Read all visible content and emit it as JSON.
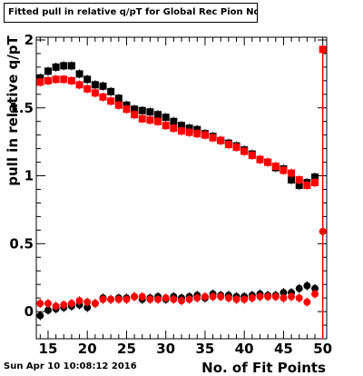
{
  "title": "Fitted pull in relative q/pT  for Global Rec Pion NoHits",
  "timestamp": "Sun Apr 10 10:08:12 2016",
  "chart_data": {
    "type": "scatter",
    "title": "Fitted pull in relative q/pT  for Global Rec Pion NoHits",
    "xlabel": "No. of Fit Points",
    "ylabel": "pull in relative q/pT",
    "xlim": [
      13.5,
      50.5
    ],
    "ylim": [
      -0.2,
      2.02
    ],
    "xticks": [
      15,
      20,
      25,
      30,
      35,
      40,
      45,
      50
    ],
    "yticks": [
      0,
      0.5,
      1,
      1.5,
      2
    ],
    "ytick_labels": [
      "0",
      "0.5",
      "1",
      "1.5",
      "2"
    ],
    "grid": false,
    "series": [
      {
        "marker": "square",
        "color": "#000000",
        "x": [
          14,
          15,
          16,
          17,
          18,
          19,
          20,
          21,
          22,
          23,
          24,
          25,
          26,
          27,
          28,
          29,
          30,
          31,
          32,
          33,
          34,
          35,
          36,
          37,
          38,
          39,
          40,
          41,
          42,
          43,
          44,
          45,
          46,
          47,
          48,
          49
        ],
        "y": [
          1.72,
          1.77,
          1.8,
          1.81,
          1.81,
          1.75,
          1.71,
          1.67,
          1.66,
          1.62,
          1.57,
          1.52,
          1.49,
          1.48,
          1.47,
          1.45,
          1.43,
          1.4,
          1.37,
          1.35,
          1.34,
          1.31,
          1.29,
          1.26,
          1.24,
          1.22,
          1.19,
          1.16,
          1.12,
          1.1,
          1.06,
          1.05,
          0.97,
          0.93,
          0.95,
          0.99
        ]
      },
      {
        "marker": "square",
        "color": "#ff0000",
        "x": [
          14,
          15,
          16,
          17,
          18,
          19,
          20,
          21,
          22,
          23,
          24,
          25,
          26,
          27,
          28,
          29,
          30,
          31,
          32,
          33,
          34,
          35,
          36,
          37,
          38,
          39,
          40,
          41,
          42,
          43,
          44,
          45,
          46,
          47,
          48,
          49,
          50
        ],
        "y": [
          1.69,
          1.7,
          1.71,
          1.71,
          1.7,
          1.67,
          1.64,
          1.61,
          1.58,
          1.55,
          1.52,
          1.49,
          1.45,
          1.42,
          1.41,
          1.4,
          1.37,
          1.35,
          1.33,
          1.32,
          1.31,
          1.3,
          1.28,
          1.26,
          1.23,
          1.21,
          1.18,
          1.15,
          1.12,
          1.1,
          1.07,
          1.04,
          1.02,
          0.97,
          0.93,
          0.95,
          1.93
        ]
      },
      {
        "marker": "circle",
        "color": "#000000",
        "x": [
          14,
          15,
          16,
          17,
          18,
          19,
          20,
          21,
          22,
          23,
          24,
          25,
          26,
          27,
          28,
          29,
          30,
          31,
          32,
          33,
          34,
          35,
          36,
          37,
          38,
          39,
          40,
          41,
          42,
          43,
          44,
          45,
          46,
          47,
          48,
          49
        ],
        "y": [
          -0.03,
          0.01,
          0.02,
          0.03,
          0.04,
          0.05,
          0.03,
          0.06,
          0.1,
          0.09,
          0.1,
          0.1,
          0.11,
          0.09,
          0.1,
          0.11,
          0.09,
          0.11,
          0.1,
          0.11,
          0.12,
          0.1,
          0.13,
          0.12,
          0.12,
          0.11,
          0.11,
          0.12,
          0.13,
          0.12,
          0.12,
          0.14,
          0.14,
          0.17,
          0.19,
          0.17
        ]
      },
      {
        "marker": "circle",
        "color": "#ff0000",
        "x": [
          14,
          15,
          16,
          17,
          18,
          19,
          20,
          21,
          22,
          23,
          24,
          25,
          26,
          27,
          28,
          29,
          30,
          31,
          32,
          33,
          34,
          35,
          36,
          37,
          38,
          39,
          40,
          41,
          42,
          43,
          44,
          45,
          46,
          47,
          48,
          49,
          50
        ],
        "y": [
          0.06,
          0.06,
          0.04,
          0.05,
          0.06,
          0.08,
          0.07,
          0.06,
          0.09,
          0.09,
          0.09,
          0.09,
          0.11,
          0.11,
          0.09,
          0.09,
          0.1,
          0.09,
          0.08,
          0.09,
          0.1,
          0.11,
          0.11,
          0.11,
          0.1,
          0.09,
          0.09,
          0.1,
          0.11,
          0.11,
          0.11,
          0.1,
          0.11,
          0.1,
          0.07,
          0.13,
          0.59
        ]
      }
    ]
  }
}
